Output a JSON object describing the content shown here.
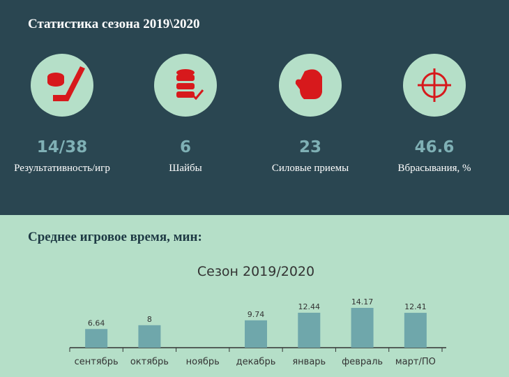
{
  "header": {
    "title": "Статистика сезона 2019\\2020"
  },
  "stats": [
    {
      "value": "14/38",
      "label": "Результативность/игр"
    },
    {
      "value": 6,
      "label": "Шайбы"
    },
    {
      "value": 23,
      "label": "Силовые приемы"
    },
    {
      "value": 46.6,
      "label": "Вбрасывания, %"
    }
  ],
  "section_title": "Среднее игровое время, мин:",
  "chart_data": {
    "type": "bar",
    "title": "Сезон 2019/2020",
    "categories": [
      "сентябрь",
      "октябрь",
      "ноябрь",
      "декабрь",
      "январь",
      "февраль",
      "март/ПО"
    ],
    "values": [
      6.64,
      8,
      null,
      9.74,
      12.44,
      14.17,
      12.41
    ],
    "color": "#6fa7ab"
  }
}
